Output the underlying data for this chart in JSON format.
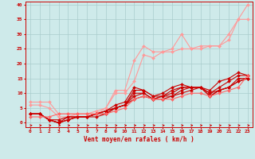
{
  "title": "",
  "xlabel": "Vent moyen/en rafales ( km/h )",
  "ylabel": "",
  "xlim": [
    -0.5,
    23.5
  ],
  "ylim": [
    -1.5,
    41
  ],
  "xticks": [
    0,
    1,
    2,
    3,
    4,
    5,
    6,
    7,
    8,
    9,
    10,
    11,
    12,
    13,
    14,
    15,
    16,
    17,
    18,
    19,
    20,
    21,
    22,
    23
  ],
  "yticks": [
    0,
    5,
    10,
    15,
    20,
    25,
    30,
    35,
    40
  ],
  "bg_color": "#ceeaea",
  "grid_color": "#aacccc",
  "series": [
    {
      "x": [
        0,
        1,
        2,
        3,
        4,
        5,
        6,
        7,
        8,
        9,
        10,
        11,
        12,
        13,
        14,
        15,
        16,
        17,
        18,
        19,
        20,
        21,
        22,
        23
      ],
      "y": [
        7,
        7,
        7,
        3,
        3,
        3,
        3,
        4,
        5,
        11,
        11,
        21,
        26,
        24,
        24,
        25,
        30,
        25,
        26,
        26,
        26,
        30,
        35,
        40
      ],
      "color": "#ff9999",
      "lw": 0.8,
      "marker": "D",
      "ms": 2.0
    },
    {
      "x": [
        0,
        1,
        2,
        3,
        4,
        5,
        6,
        7,
        8,
        9,
        10,
        11,
        12,
        13,
        14,
        15,
        16,
        17,
        18,
        19,
        20,
        21,
        22,
        23
      ],
      "y": [
        6,
        6,
        5,
        2,
        2,
        3,
        3,
        3,
        5,
        10,
        10,
        14,
        23,
        22,
        24,
        24,
        25,
        25,
        25,
        26,
        26,
        28,
        35,
        35
      ],
      "color": "#ff9999",
      "lw": 0.8,
      "marker": "D",
      "ms": 2.0
    },
    {
      "x": [
        0,
        1,
        2,
        3,
        4,
        5,
        6,
        7,
        8,
        9,
        10,
        11,
        12,
        13,
        14,
        15,
        16,
        17,
        18,
        19,
        20,
        21,
        22,
        23
      ],
      "y": [
        3,
        3,
        1,
        1,
        2,
        2,
        2,
        3,
        4,
        6,
        7,
        12,
        11,
        9,
        10,
        12,
        13,
        12,
        12,
        11,
        14,
        15,
        17,
        16
      ],
      "color": "#cc0000",
      "lw": 0.8,
      "marker": "D",
      "ms": 2.0
    },
    {
      "x": [
        0,
        1,
        2,
        3,
        4,
        5,
        6,
        7,
        8,
        9,
        10,
        11,
        12,
        13,
        14,
        15,
        16,
        17,
        18,
        19,
        20,
        21,
        22,
        23
      ],
      "y": [
        3,
        3,
        1,
        0,
        2,
        2,
        2,
        3,
        4,
        5,
        6,
        11,
        11,
        9,
        9,
        11,
        12,
        12,
        12,
        10,
        12,
        14,
        16,
        16
      ],
      "color": "#cc0000",
      "lw": 0.8,
      "marker": "D",
      "ms": 2.0
    },
    {
      "x": [
        0,
        1,
        2,
        3,
        4,
        5,
        6,
        7,
        8,
        9,
        10,
        11,
        12,
        13,
        14,
        15,
        16,
        17,
        18,
        19,
        20,
        21,
        22,
        23
      ],
      "y": [
        3,
        3,
        1,
        0,
        1,
        2,
        2,
        3,
        4,
        5,
        6,
        10,
        10,
        8,
        9,
        10,
        12,
        12,
        12,
        10,
        11,
        12,
        15,
        15
      ],
      "color": "#cc0000",
      "lw": 0.8,
      "marker": "D",
      "ms": 2.0
    },
    {
      "x": [
        0,
        1,
        2,
        3,
        4,
        5,
        6,
        7,
        8,
        9,
        10,
        11,
        12,
        13,
        14,
        15,
        16,
        17,
        18,
        19,
        20,
        21,
        22,
        23
      ],
      "y": [
        3,
        3,
        1,
        0,
        1,
        2,
        2,
        3,
        3,
        5,
        6,
        9,
        10,
        8,
        9,
        9,
        11,
        12,
        12,
        9,
        11,
        12,
        14,
        15
      ],
      "color": "#cc0000",
      "lw": 0.8,
      "marker": "D",
      "ms": 2.0
    },
    {
      "x": [
        0,
        1,
        2,
        3,
        4,
        5,
        6,
        7,
        8,
        9,
        10,
        11,
        12,
        13,
        14,
        15,
        16,
        17,
        18,
        19,
        20,
        21,
        22,
        23
      ],
      "y": [
        3,
        3,
        1,
        0,
        1,
        2,
        2,
        2,
        3,
        5,
        6,
        8,
        9,
        8,
        8,
        9,
        10,
        11,
        12,
        9,
        11,
        12,
        14,
        15
      ],
      "color": "#cc0000",
      "lw": 0.8,
      "marker": "D",
      "ms": 2.0
    },
    {
      "x": [
        0,
        1,
        2,
        3,
        4,
        5,
        6,
        7,
        8,
        9,
        10,
        11,
        12,
        13,
        14,
        15,
        16,
        17,
        18,
        19,
        20,
        21,
        22,
        23
      ],
      "y": [
        2,
        2,
        2,
        3,
        3,
        3,
        3,
        3,
        3,
        4,
        5,
        8,
        9,
        8,
        8,
        8,
        9,
        10,
        10,
        9,
        10,
        11,
        12,
        16
      ],
      "color": "#ff6666",
      "lw": 0.8,
      "marker": "D",
      "ms": 2.0
    }
  ]
}
